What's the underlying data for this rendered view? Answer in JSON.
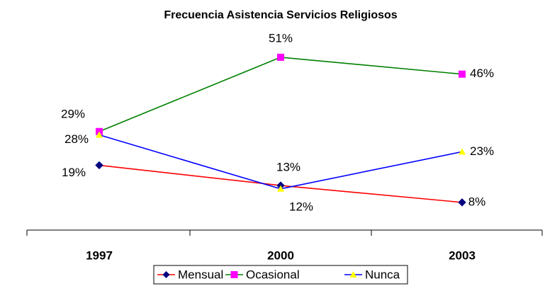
{
  "chart_data": {
    "type": "line",
    "title": "Frecuencia Asistencia Servicios Religiosos",
    "categories": [
      "1997",
      "2000",
      "2003"
    ],
    "series": [
      {
        "name": "Mensual",
        "color": "#ff0000",
        "marker": "diamond",
        "marker_color": "#000080",
        "values": [
          19,
          13,
          8
        ],
        "value_labels": [
          "19%",
          "13%",
          "8%"
        ]
      },
      {
        "name": "Ocasional",
        "color": "#008000",
        "marker": "square",
        "marker_color": "#ff00ff",
        "values": [
          29,
          51,
          46
        ],
        "value_labels": [
          "29%",
          "51%",
          "46%"
        ]
      },
      {
        "name": "Nunca",
        "color": "#0000ff",
        "marker": "triangle",
        "marker_color": "#ffff00",
        "values": [
          28,
          12,
          23
        ],
        "value_labels": [
          "28%",
          "12%",
          "23%"
        ]
      }
    ],
    "ylim": [
      0,
      60
    ],
    "legend": "bottom"
  }
}
